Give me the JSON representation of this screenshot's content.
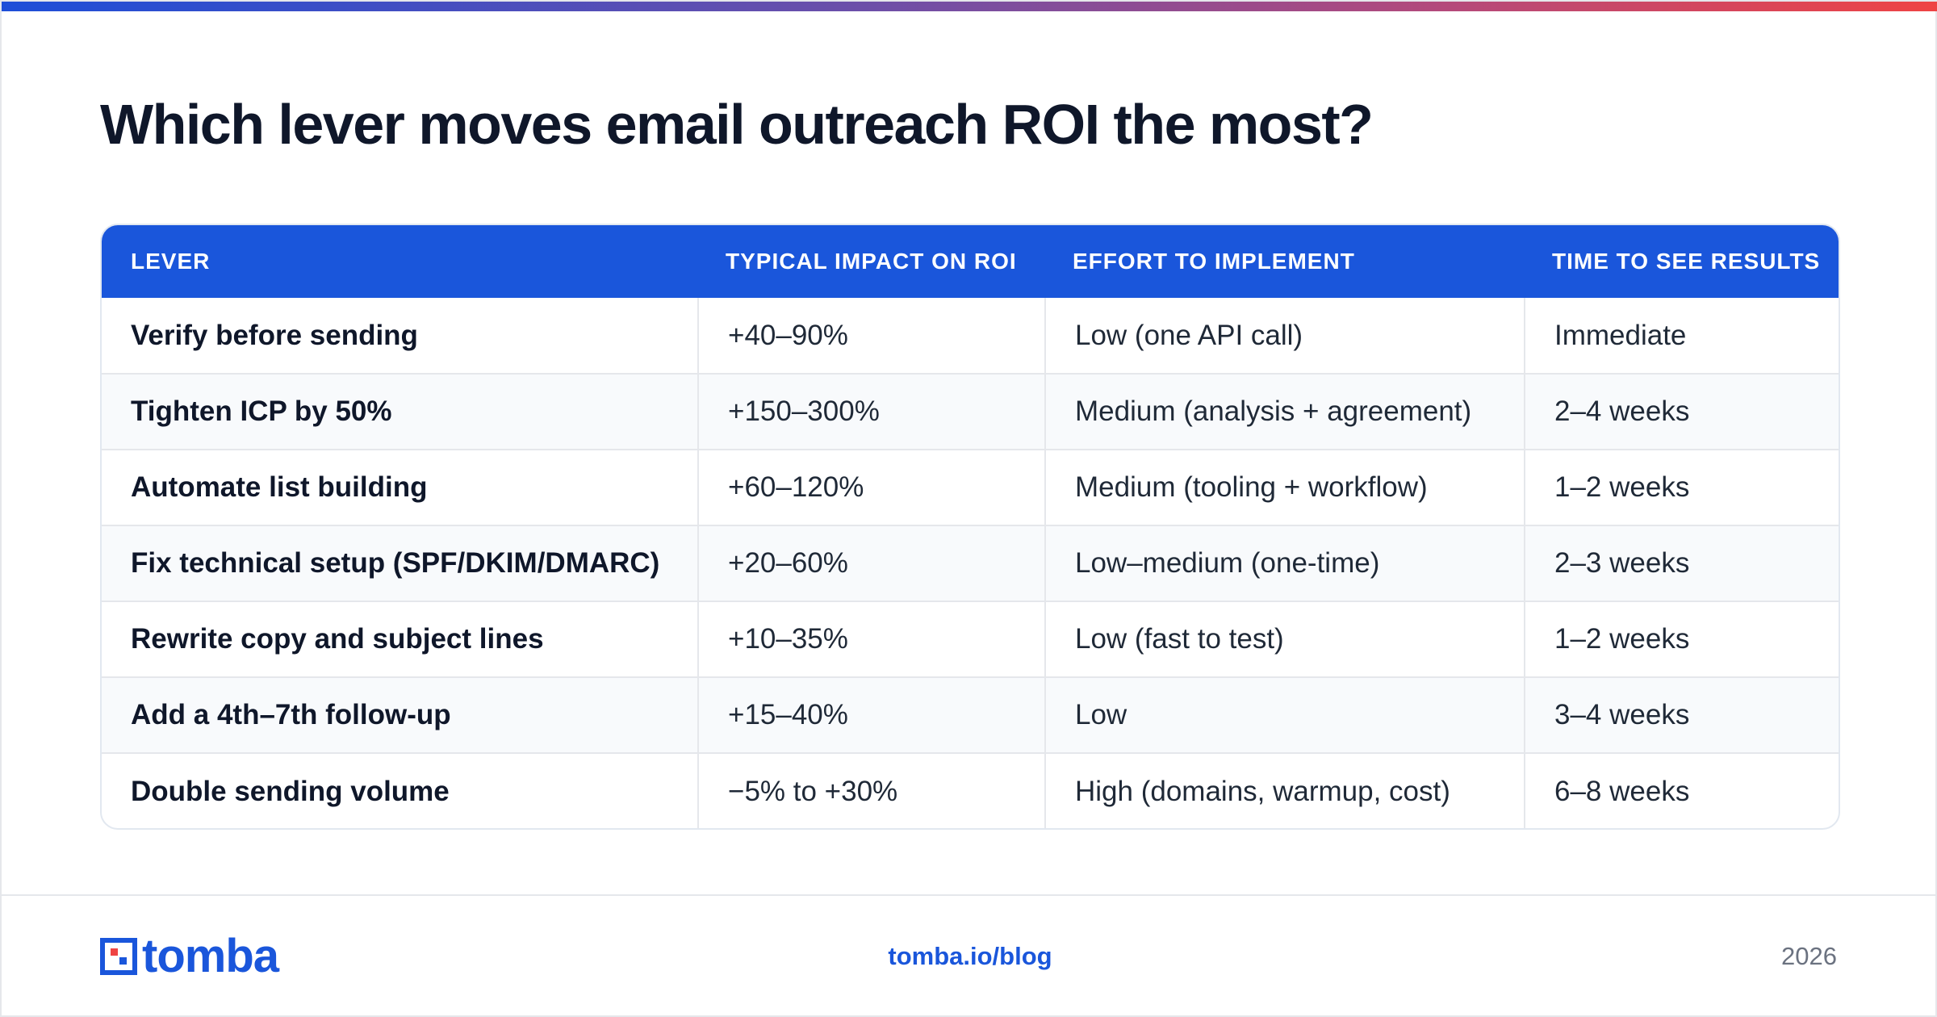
{
  "title": "Which lever moves email outreach ROI the most?",
  "table": {
    "headers": [
      "LEVER",
      "TYPICAL IMPACT ON ROI",
      "EFFORT TO IMPLEMENT",
      "TIME TO SEE RESULTS"
    ],
    "rows": [
      {
        "lever": "Verify before sending",
        "impact": "+40–90%",
        "effort": "Low (one API call)",
        "time": "Immediate"
      },
      {
        "lever": "Tighten ICP by 50%",
        "impact": "+150–300%",
        "effort": "Medium (analysis + agreement)",
        "time": "2–4 weeks"
      },
      {
        "lever": "Automate list building",
        "impact": "+60–120%",
        "effort": "Medium (tooling + workflow)",
        "time": "1–2 weeks"
      },
      {
        "lever": "Fix technical setup (SPF/DKIM/DMARC)",
        "impact": "+20–60%",
        "effort": "Low–medium (one-time)",
        "time": "2–3 weeks"
      },
      {
        "lever": "Rewrite copy and subject lines",
        "impact": "+10–35%",
        "effort": "Low (fast to test)",
        "time": "1–2 weeks"
      },
      {
        "lever": "Add a 4th–7th follow-up",
        "impact": "+15–40%",
        "effort": "Low",
        "time": "3–4 weeks"
      },
      {
        "lever": "Double sending volume",
        "impact": "−5% to +30%",
        "effort": "High (domains, warmup, cost)",
        "time": "6–8 weeks"
      }
    ]
  },
  "footer": {
    "brand": "tomba",
    "url": "tomba.io/blog",
    "year": "2026"
  },
  "colors": {
    "accent": "#1a56db",
    "gradient_start": "#1d4ed8",
    "gradient_end": "#ef4444"
  }
}
